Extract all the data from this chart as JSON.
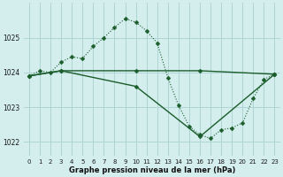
{
  "title": "Graphe pression niveau de la mer (hPa)",
  "bg_color": "#d4eeee",
  "grid_color": "#aed4d4",
  "line_color": "#1a5c2a",
  "xlim": [
    -0.5,
    23.5
  ],
  "ylim": [
    1021.6,
    1026.0
  ],
  "yticks": [
    1022,
    1023,
    1024,
    1025
  ],
  "xticks": [
    0,
    1,
    2,
    3,
    4,
    5,
    6,
    7,
    8,
    9,
    10,
    11,
    12,
    13,
    14,
    15,
    16,
    17,
    18,
    19,
    20,
    21,
    22,
    23
  ],
  "series1_x": [
    0,
    1,
    2,
    3,
    4,
    5,
    6,
    7,
    8,
    9,
    10,
    11,
    12,
    13,
    14,
    15,
    16,
    17,
    18,
    19,
    20,
    21,
    22,
    23
  ],
  "series1_y": [
    1023.9,
    1024.05,
    1024.0,
    1024.3,
    1024.45,
    1024.4,
    1024.75,
    1025.0,
    1025.3,
    1025.55,
    1025.45,
    1025.2,
    1024.85,
    1023.85,
    1023.05,
    1022.45,
    1022.2,
    1022.1,
    1022.35,
    1022.4,
    1022.55,
    1023.25,
    1023.8,
    1023.95
  ],
  "series2_x": [
    0,
    3,
    10,
    16,
    23
  ],
  "series2_y": [
    1023.9,
    1024.05,
    1024.05,
    1024.05,
    1023.95
  ],
  "series3_x": [
    0,
    3,
    10,
    16,
    23
  ],
  "series3_y": [
    1023.9,
    1024.05,
    1023.6,
    1022.15,
    1023.95
  ],
  "tick_fontsize": 5.0,
  "xlabel_fontsize": 6.0,
  "ylabel_fontsize": 5.5,
  "marker_size": 2.5
}
